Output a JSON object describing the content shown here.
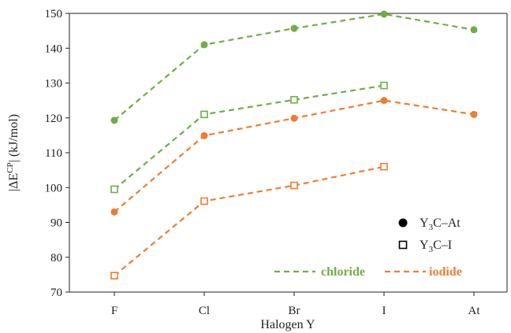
{
  "chart_data": {
    "type": "line",
    "categories": [
      "F",
      "Cl",
      "Br",
      "I",
      "At"
    ],
    "xlabel": "Halogen Y",
    "ylabel": {
      "pre": "|ΔE",
      "sup": "CP",
      "post": "| (kJ/mol)"
    },
    "ylim": [
      70,
      150
    ],
    "yticks": [
      70,
      80,
      90,
      100,
      110,
      120,
      130,
      140,
      150
    ],
    "grid": false,
    "colors": {
      "chloride": "#70AD47",
      "iodide": "#ED7D31"
    },
    "series": [
      {
        "solvent": "chloride",
        "complex": "Y3C–At",
        "marker": "circle",
        "values": [
          119.3,
          141.0,
          145.7,
          149.8,
          145.3
        ]
      },
      {
        "solvent": "chloride",
        "complex": "Y3C–I",
        "marker": "square",
        "values": [
          99.5,
          121.0,
          125.2,
          129.3,
          null
        ]
      },
      {
        "solvent": "iodide",
        "complex": "Y3C–At",
        "marker": "circle",
        "values": [
          93.0,
          114.9,
          119.9,
          125.0,
          121.0
        ]
      },
      {
        "solvent": "iodide",
        "complex": "Y3C–I",
        "marker": "square",
        "values": [
          74.7,
          96.1,
          100.6,
          106.0,
          null
        ]
      }
    ],
    "legend": {
      "placement": "bottom-right",
      "markers": [
        {
          "marker": "circle",
          "pre": "Y",
          "sub": "3",
          "post": "C–At"
        },
        {
          "marker": "square",
          "pre": "Y",
          "sub": "3",
          "post": "C–I"
        }
      ],
      "lines": [
        {
          "key": "chloride",
          "label": "chloride"
        },
        {
          "key": "iodide",
          "label": "iodide"
        }
      ]
    }
  }
}
